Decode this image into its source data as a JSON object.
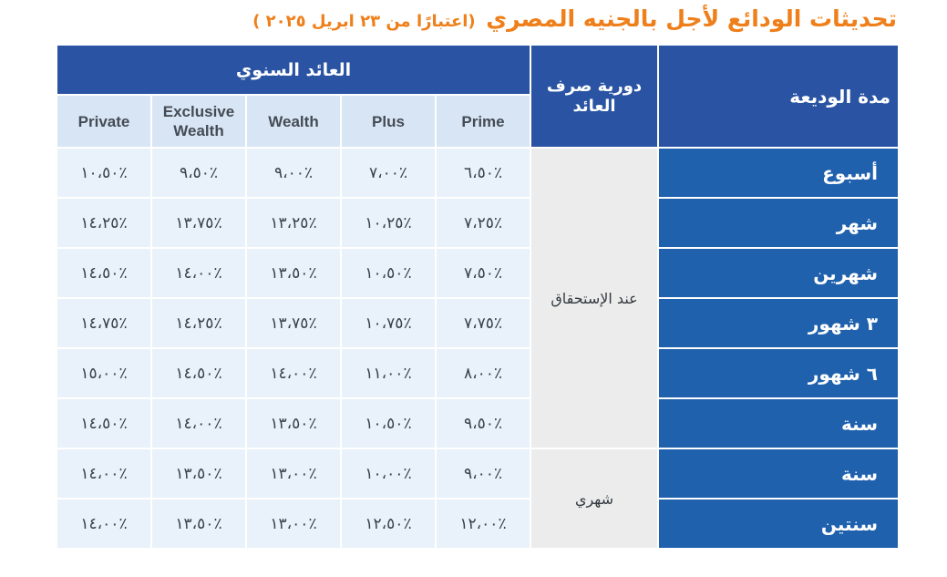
{
  "title": {
    "main": "تحديثات الودائع لأجل بالجنيه المصري",
    "sub": "(اعتبارًا من ٢٣ ابريل ٢٠٢٥ )"
  },
  "table": {
    "header": {
      "term": "مدة الوديعة",
      "payout": "دورية صرف العائد",
      "annual": "العائد السنوي"
    },
    "tiers": [
      "Private",
      "Exclusive Wealth",
      "Wealth",
      "Plus",
      "Prime"
    ],
    "payout_groups": [
      "عند الإستحقاق",
      "شهري"
    ],
    "rows": [
      {
        "term": "أسبوع",
        "values": [
          "٪١٠،٥٠",
          "٪٩،٥٠",
          "٪٩،٠٠",
          "٪٧،٠٠",
          "٪٦،٥٠"
        ]
      },
      {
        "term": "شهر",
        "values": [
          "٪١٤،٢٥",
          "٪١٣،٧٥",
          "٪١٣،٢٥",
          "٪١٠،٢٥",
          "٪٧،٢٥"
        ]
      },
      {
        "term": "شهرين",
        "values": [
          "٪١٤،٥٠",
          "٪١٤،٠٠",
          "٪١٣،٥٠",
          "٪١٠،٥٠",
          "٪٧،٥٠"
        ]
      },
      {
        "term": "٣ شهور",
        "values": [
          "٪١٤،٧٥",
          "٪١٤،٢٥",
          "٪١٣،٧٥",
          "٪١٠،٧٥",
          "٪٧،٧٥"
        ]
      },
      {
        "term": "٦ شهور",
        "values": [
          "٪١٥،٠٠",
          "٪١٤،٥٠",
          "٪١٤،٠٠",
          "٪١١،٠٠",
          "٪٨،٠٠"
        ]
      },
      {
        "term": "سنة",
        "values": [
          "٪١٤،٥٠",
          "٪١٤،٠٠",
          "٪١٣،٥٠",
          "٪١٠،٥٠",
          "٪٩،٥٠"
        ]
      },
      {
        "term": "سنة",
        "values": [
          "٪١٤،٠٠",
          "٪١٣،٥٠",
          "٪١٣،٠٠",
          "٪١٠،٠٠",
          "٪٩،٠٠"
        ]
      },
      {
        "term": "سنتين",
        "values": [
          "٪١٤،٠٠",
          "٪١٣،٥٠",
          "٪١٣،٠٠",
          "٪١٢،٥٠",
          "٪١٢،٠٠"
        ]
      }
    ]
  },
  "colors": {
    "title": "#ef7f1a",
    "header_blue": "#2a54a3",
    "term_blue": "#1f61ad",
    "tier_header": "#d8e5f4",
    "value_cell": "#e9f1fa",
    "payout_cell": "#ececec"
  }
}
